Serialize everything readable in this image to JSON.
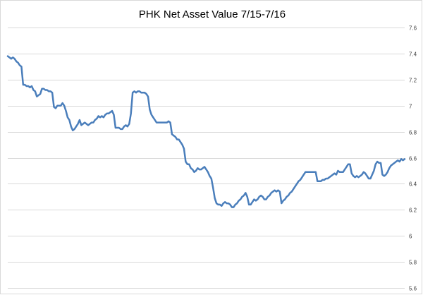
{
  "chart_data": {
    "type": "line",
    "title": "PHK Net Asset Value 7/15-7/16",
    "xlabel": "",
    "ylabel": "",
    "ylim": [
      5.6,
      7.6
    ],
    "yticks": [
      5.6,
      5.8,
      6,
      6.2,
      6.4,
      6.6,
      6.8,
      7,
      7.2,
      7.4,
      7.6
    ],
    "ytick_labels": [
      "5.6",
      "5.8",
      "6",
      "6.2",
      "6.4",
      "6.6",
      "6.8",
      "7",
      "7.2",
      "7.4",
      "7.6"
    ],
    "y_axis_position": "right",
    "grid": true,
    "legend": "none",
    "series_color": "#4a7ebb",
    "series": [
      {
        "values": [
          7.38,
          7.37,
          7.36,
          7.37,
          7.36,
          7.34,
          7.33,
          7.31,
          7.3,
          7.16,
          7.16,
          7.15,
          7.15,
          7.14,
          7.15,
          7.12,
          7.11,
          7.07,
          7.08,
          7.09,
          7.13,
          7.13,
          7.12,
          7.12,
          7.11,
          7.11,
          7.1,
          6.99,
          6.98,
          7.0,
          7.0,
          7.0,
          7.02,
          7.0,
          6.96,
          6.91,
          6.89,
          6.84,
          6.81,
          6.82,
          6.84,
          6.86,
          6.89,
          6.85,
          6.86,
          6.87,
          6.86,
          6.85,
          6.86,
          6.87,
          6.87,
          6.89,
          6.9,
          6.92,
          6.91,
          6.92,
          6.91,
          6.93,
          6.94,
          6.94,
          6.95,
          6.96,
          6.93,
          6.83,
          6.83,
          6.83,
          6.82,
          6.82,
          6.84,
          6.85,
          6.84,
          6.86,
          6.94,
          7.1,
          7.11,
          7.1,
          7.11,
          7.11,
          7.1,
          7.1,
          7.1,
          7.09,
          7.07,
          6.97,
          6.93,
          6.91,
          6.89,
          6.87,
          6.87,
          6.87,
          6.87,
          6.87,
          6.87,
          6.87,
          6.88,
          6.87,
          6.78,
          6.77,
          6.76,
          6.74,
          6.74,
          6.72,
          6.7,
          6.67,
          6.57,
          6.55,
          6.55,
          6.52,
          6.51,
          6.49,
          6.5,
          6.52,
          6.51,
          6.51,
          6.52,
          6.53,
          6.51,
          6.49,
          6.46,
          6.44,
          6.37,
          6.29,
          6.25,
          6.24,
          6.24,
          6.23,
          6.25,
          6.26,
          6.25,
          6.25,
          6.24,
          6.22,
          6.22,
          6.24,
          6.25,
          6.27,
          6.28,
          6.3,
          6.31,
          6.33,
          6.3,
          6.24,
          6.24,
          6.26,
          6.28,
          6.27,
          6.28,
          6.3,
          6.31,
          6.3,
          6.28,
          6.28,
          6.3,
          6.31,
          6.33,
          6.34,
          6.35,
          6.34,
          6.35,
          6.34,
          6.25,
          6.27,
          6.28,
          6.3,
          6.31,
          6.33,
          6.34,
          6.36,
          6.38,
          6.4,
          6.42,
          6.43,
          6.45,
          6.47,
          6.49,
          6.49,
          6.49,
          6.49,
          6.49,
          6.49,
          6.49,
          6.42,
          6.42,
          6.42,
          6.43,
          6.43,
          6.44,
          6.44,
          6.45,
          6.46,
          6.47,
          6.48,
          6.47,
          6.5,
          6.49,
          6.49,
          6.49,
          6.51,
          6.53,
          6.55,
          6.55,
          6.48,
          6.46,
          6.45,
          6.46,
          6.45,
          6.46,
          6.47,
          6.49,
          6.48,
          6.46,
          6.44,
          6.44,
          6.47,
          6.5,
          6.55,
          6.57,
          6.56,
          6.56,
          6.47,
          6.46,
          6.47,
          6.49,
          6.52,
          6.54,
          6.55,
          6.56,
          6.57,
          6.58,
          6.57,
          6.59,
          6.58,
          6.59
        ]
      }
    ]
  }
}
